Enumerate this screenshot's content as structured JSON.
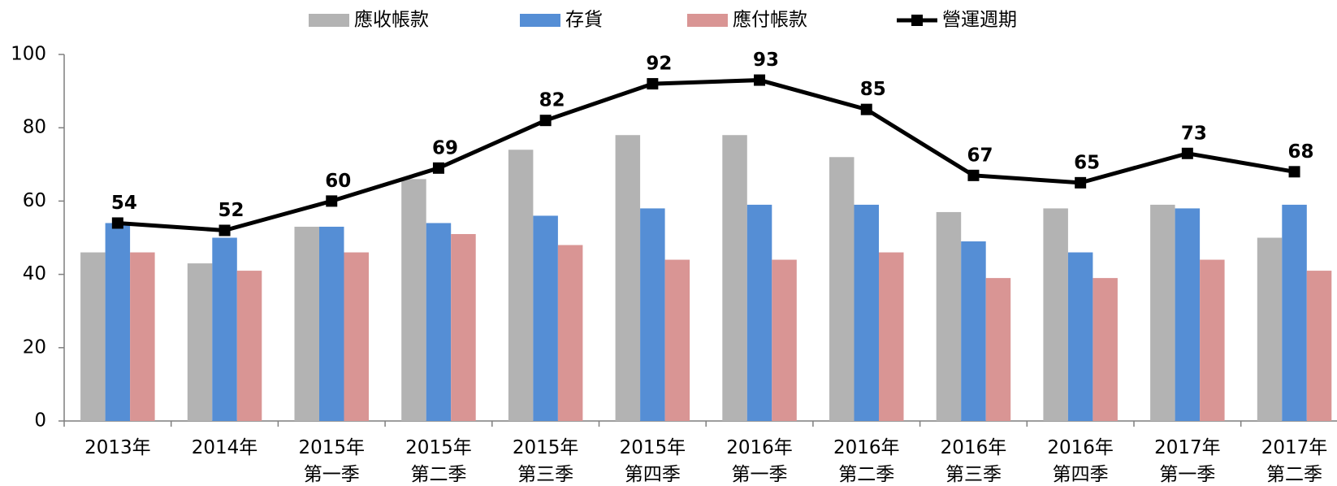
{
  "chart_data": {
    "type": "bar_line",
    "categories": [
      [
        "2013年"
      ],
      [
        "2014年"
      ],
      [
        "2015年",
        "第一季"
      ],
      [
        "2015年",
        "第二季"
      ],
      [
        "2015年",
        "第三季"
      ],
      [
        "2015年",
        "第四季"
      ],
      [
        "2016年",
        "第一季"
      ],
      [
        "2016年",
        "第二季"
      ],
      [
        "2016年",
        "第三季"
      ],
      [
        "2016年",
        "第四季"
      ],
      [
        "2017年",
        "第一季"
      ],
      [
        "2017年",
        "第二季"
      ]
    ],
    "series": [
      {
        "name": "應收帳款",
        "type": "bar",
        "color": "#b3b3b3",
        "values": [
          46,
          43,
          53,
          66,
          74,
          78,
          78,
          72,
          57,
          58,
          59,
          50
        ]
      },
      {
        "name": "存貨",
        "type": "bar",
        "color": "#558ed5",
        "values": [
          54,
          50,
          53,
          54,
          56,
          58,
          59,
          59,
          49,
          46,
          58,
          59
        ]
      },
      {
        "name": "應付帳款",
        "type": "bar",
        "color": "#d99594",
        "values": [
          46,
          41,
          46,
          51,
          48,
          44,
          44,
          46,
          39,
          39,
          44,
          41
        ]
      },
      {
        "name": "營運週期",
        "type": "line",
        "color": "#000000",
        "values": [
          54,
          52,
          60,
          69,
          82,
          92,
          93,
          85,
          67,
          65,
          73,
          68
        ],
        "show_values": true
      }
    ],
    "ylim": [
      0,
      100
    ],
    "yticks": [
      0,
      20,
      40,
      60,
      80,
      100
    ],
    "grid": false,
    "legend": "top"
  }
}
